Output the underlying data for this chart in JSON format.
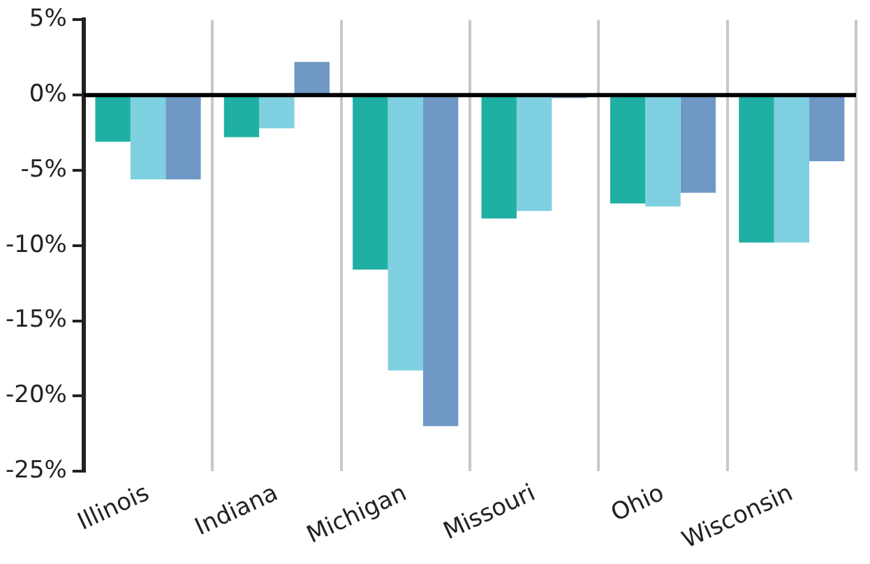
{
  "chart_data": {
    "type": "bar",
    "categories": [
      "Illinois",
      "Indiana",
      "Michigan",
      "Missouri",
      "Ohio",
      "Wisconsin"
    ],
    "series": [
      {
        "color": "#20b0a3",
        "values": [
          -3.1,
          -2.8,
          -11.6,
          -8.2,
          -7.2,
          -9.8
        ]
      },
      {
        "color": "#7fd0e0",
        "values": [
          -5.6,
          -2.2,
          -18.3,
          -7.7,
          -7.4,
          -9.8
        ]
      },
      {
        "color": "#6f98c6",
        "values": [
          -5.6,
          2.2,
          -22.0,
          -0.2,
          -6.5,
          -4.4
        ]
      }
    ],
    "ylim": [
      -25,
      5
    ],
    "yticks": [
      {
        "value": -25,
        "label": "-25%"
      },
      {
        "value": -20,
        "label": "-20%"
      },
      {
        "value": -15,
        "label": "-15%"
      },
      {
        "value": -10,
        "label": "-10%"
      },
      {
        "value": -5,
        "label": "-5%"
      },
      {
        "value": 0,
        "label": "0%"
      },
      {
        "value": 5,
        "label": "5%"
      }
    ],
    "grid": "x",
    "legend": false
  }
}
